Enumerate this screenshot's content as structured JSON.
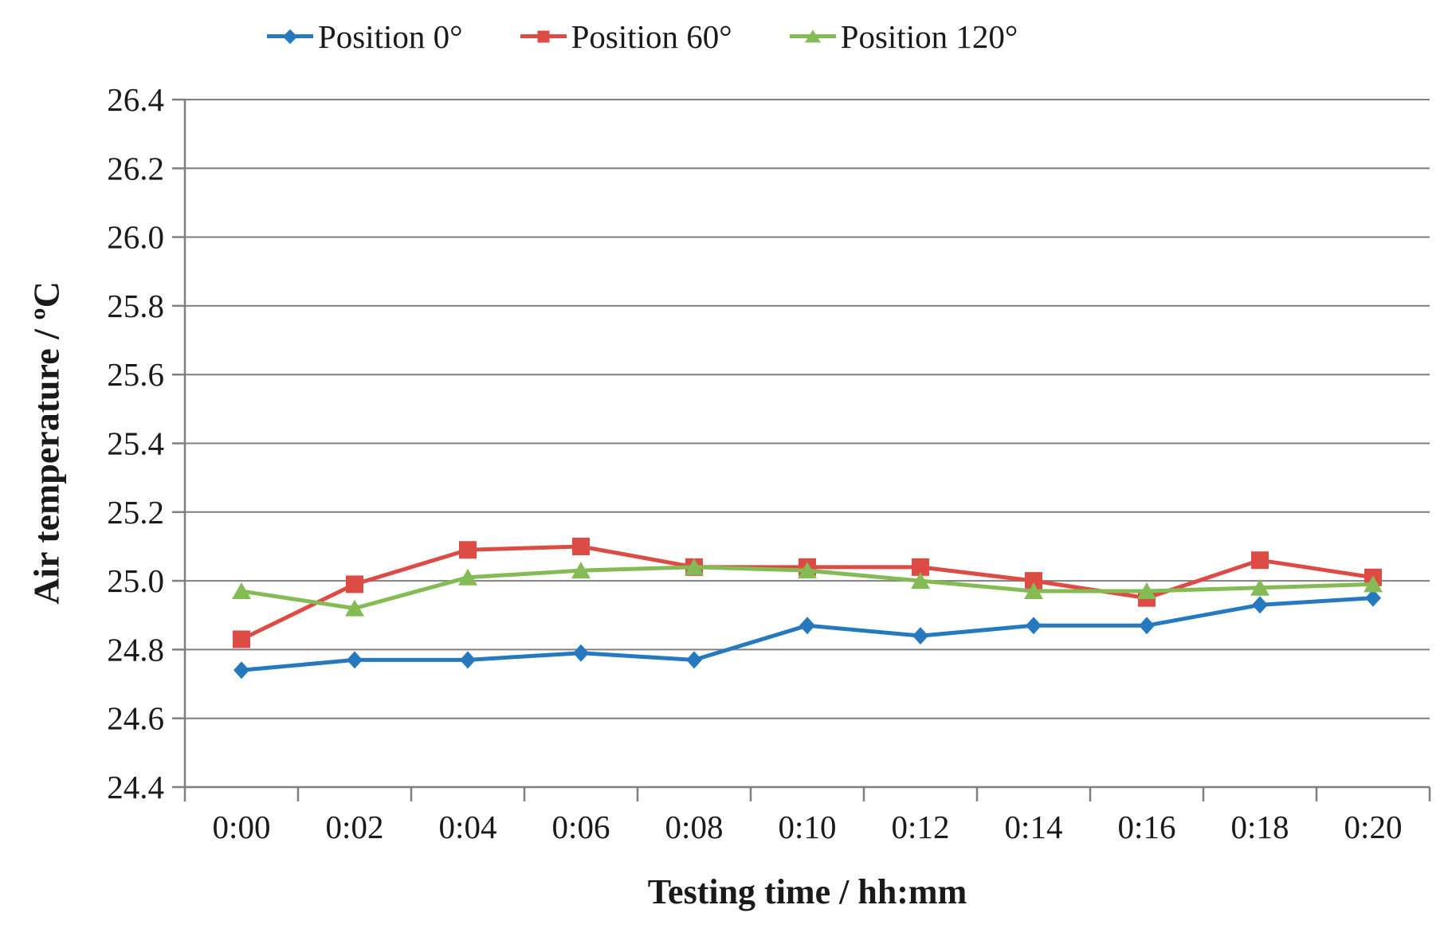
{
  "chart_data": {
    "type": "line",
    "title": "",
    "xlabel": "Testing time / hh:mm",
    "ylabel": "Air temperature / ºC",
    "categories": [
      "0:00",
      "0:02",
      "0:04",
      "0:06",
      "0:08",
      "0:10",
      "0:12",
      "0:14",
      "0:16",
      "0:18",
      "0:20"
    ],
    "series": [
      {
        "name": "Position 0°",
        "marker": "diamond",
        "color": "#2679BE",
        "values": [
          24.74,
          24.77,
          24.77,
          24.79,
          24.77,
          24.87,
          24.84,
          24.87,
          24.87,
          24.93,
          24.95
        ]
      },
      {
        "name": "Position 60°",
        "marker": "square",
        "color": "#DC4B44",
        "values": [
          24.83,
          24.99,
          25.09,
          25.1,
          25.04,
          25.04,
          25.04,
          25.0,
          24.95,
          25.06,
          25.01
        ]
      },
      {
        "name": "Position 120°",
        "marker": "triangle",
        "color": "#84BB55",
        "values": [
          24.97,
          24.92,
          25.01,
          25.03,
          25.04,
          25.03,
          25.0,
          24.97,
          24.97,
          24.98,
          24.99
        ]
      }
    ],
    "ylim": [
      24.4,
      26.4
    ],
    "ytick_step": 0.2,
    "ytick_decimals": 1,
    "grid": "horizontal",
    "legend_position": "top",
    "gridline_color": "#7F7F7F",
    "axis_color": "#7F7F7F",
    "text_color": "#1a1a1a"
  }
}
